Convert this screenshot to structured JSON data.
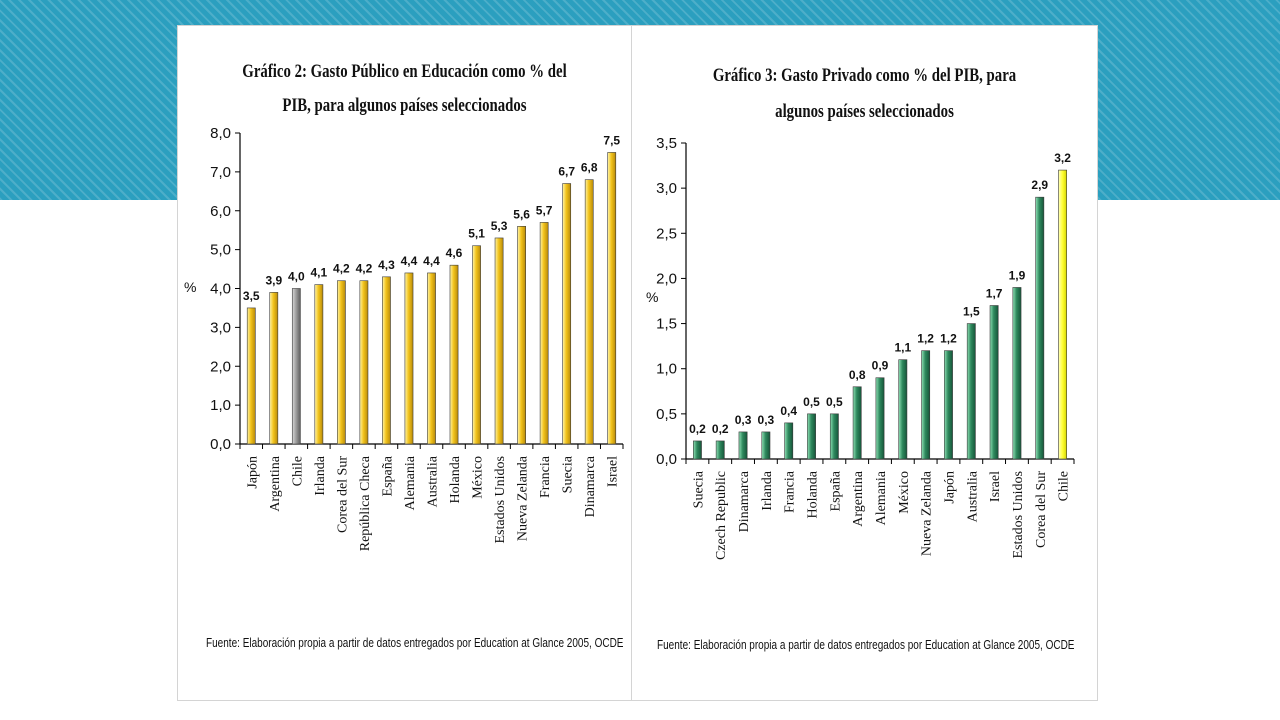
{
  "colors": {
    "background_band": "#2b9fbf",
    "bar_yellow": "#f2c31b",
    "bar_gray": "#8c8c8c",
    "bar_green": "#2f8a5e",
    "bar_highlight_yellow": "#ffff33"
  },
  "chart_data": [
    {
      "type": "bar",
      "title_line1": "Gráfico 2:  Gasto Público en Educación como % del",
      "title_line2": "PIB, para algunos países seleccionados",
      "ylabel": "%",
      "xlabel": "",
      "ylim": [
        0,
        8
      ],
      "yticks": [
        "0,0",
        "1,0",
        "2,0",
        "3,0",
        "4,0",
        "5,0",
        "6,0",
        "7,0",
        "8,0"
      ],
      "categories": [
        "Japón",
        "Argentina",
        "Chile",
        "Irlanda",
        "Corea del Sur",
        "República Checa",
        "España",
        "Alemania",
        "Australia",
        "Holanda",
        "México",
        "Estados Unidos",
        "Nueva Zelanda",
        "Francia",
        "Suecia",
        "Dinamarca",
        "Israel"
      ],
      "values": [
        3.5,
        3.9,
        4.0,
        4.1,
        4.2,
        4.2,
        4.3,
        4.4,
        4.4,
        4.6,
        5.1,
        5.3,
        5.6,
        5.7,
        6.7,
        6.8,
        7.5
      ],
      "data_labels": [
        "3,5",
        "3,9",
        "4,0",
        "4,1",
        "4,2",
        "4,2",
        "4,3",
        "4,4",
        "4,4",
        "4,6",
        "5,1",
        "5,3",
        "5,6",
        "5,7",
        "6,7",
        "6,8",
        "7,5"
      ],
      "highlight_category": "Chile",
      "bar_color": "yellow",
      "highlight_color": "gray",
      "grid": false,
      "source": "Fuente: Elaboración propia a partir de datos entregados por Education at Glance 2005, OCDE"
    },
    {
      "type": "bar",
      "title_line1": "Gráfico 3:  Gasto Privado como % del PIB, para",
      "title_line2": "algunos países seleccionados",
      "ylabel": "%",
      "xlabel": "",
      "ylim": [
        0,
        3.5
      ],
      "yticks": [
        "0,0",
        "0,5",
        "1,0",
        "1,5",
        "2,0",
        "2,5",
        "3,0",
        "3,5"
      ],
      "categories": [
        "Suecia",
        "Czech Republic",
        "Dinamarca",
        "Irlanda",
        "Francia",
        "Holanda",
        "España",
        "Argentina",
        "Alemania",
        "México",
        "Nueva Zelanda",
        "Japón",
        "Australia",
        "Israel",
        "Estados Unidos",
        "Corea del Sur",
        "Chile"
      ],
      "values": [
        0.2,
        0.2,
        0.3,
        0.3,
        0.4,
        0.5,
        0.5,
        0.8,
        0.9,
        1.1,
        1.2,
        1.2,
        1.5,
        1.7,
        1.9,
        2.9,
        3.2
      ],
      "data_labels": [
        "0,2",
        "0,2",
        "0,3",
        "0,3",
        "0,4",
        "0,5",
        "0,5",
        "0,8",
        "0,9",
        "1,1",
        "1,2",
        "1,2",
        "1,5",
        "1,7",
        "1,9",
        "2,9",
        "3,2"
      ],
      "highlight_category": "Chile",
      "bar_color": "green",
      "highlight_color": "yellow",
      "grid": false,
      "source": "Fuente: Elaboración propia a partir de datos entregados por Education at Glance 2005, OCDE"
    }
  ]
}
